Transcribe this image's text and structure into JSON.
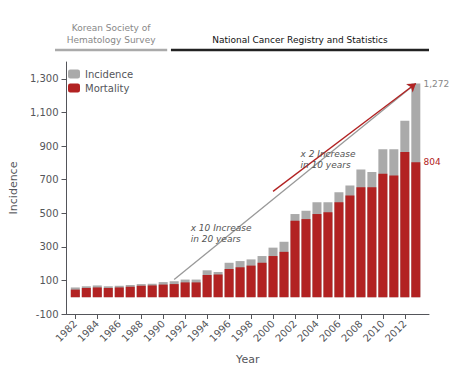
{
  "chart_data": {
    "type": "bar",
    "x": [
      1982,
      1983,
      1984,
      1985,
      1986,
      1987,
      1988,
      1989,
      1990,
      1991,
      1992,
      1993,
      1994,
      1995,
      1996,
      1997,
      1998,
      1999,
      2000,
      2001,
      2002,
      2003,
      2004,
      2005,
      2006,
      2007,
      2008,
      2009,
      2010,
      2011,
      2012,
      2013
    ],
    "xlim": [
      1981.2,
      2014.2
    ],
    "xticks": [
      1982,
      1984,
      1986,
      1988,
      1990,
      1992,
      1994,
      1996,
      1998,
      2000,
      2002,
      2004,
      2006,
      2008,
      2010,
      2012
    ],
    "xlabel": "Year",
    "ylabel": "Incidence",
    "ylim": [
      -100,
      1400
    ],
    "yticks": [
      -100,
      100,
      300,
      500,
      700,
      900,
      {
        "value": 1100,
        "label": "1,100"
      },
      {
        "value": 1300,
        "label": "1,300"
      }
    ],
    "series": [
      {
        "name": "Incidence",
        "color": "#aaaaaa",
        "values": [
          58,
          65,
          70,
          65,
          68,
          72,
          78,
          80,
          90,
          95,
          105,
          105,
          160,
          150,
          205,
          215,
          225,
          245,
          295,
          330,
          495,
          515,
          565,
          565,
          625,
          665,
          760,
          745,
          880,
          880,
          1050,
          1272
        ]
      },
      {
        "name": "Mortality",
        "color": "#b22222",
        "values": [
          45,
          55,
          58,
          55,
          58,
          62,
          68,
          70,
          75,
          78,
          88,
          88,
          132,
          135,
          168,
          178,
          188,
          205,
          245,
          270,
          455,
          465,
          495,
          505,
          565,
          605,
          655,
          655,
          735,
          725,
          865,
          804
        ]
      }
    ],
    "stacked": false,
    "grid": false,
    "legend": "upper left",
    "annotations": [
      {
        "text": "x 10 Increase\nin 20 years",
        "x": 1992.5,
        "y": 380,
        "color": "#555555"
      },
      {
        "text": "x 2 Increase\nin 10 years",
        "x": 2002.5,
        "y": 820,
        "color": "#555555"
      },
      {
        "text": "1,272",
        "x": 2013.7,
        "y": 1272,
        "color": "#888888"
      },
      {
        "text": "804",
        "x": 2013.7,
        "y": 804,
        "color": "#b22222"
      }
    ],
    "arrows": [
      {
        "x": [
          1991,
          2013
        ],
        "y": [
          105,
          1272
        ],
        "color": "#999999"
      },
      {
        "x": [
          2000,
          2013
        ],
        "y": [
          630,
          1272
        ],
        "color": "#b22222"
      }
    ],
    "headers": [
      {
        "text": "Korean Society of\nHematology Survey",
        "color": "#888888"
      },
      {
        "text": "National Cancer Registry and Statistics",
        "color": "#111111"
      }
    ]
  }
}
